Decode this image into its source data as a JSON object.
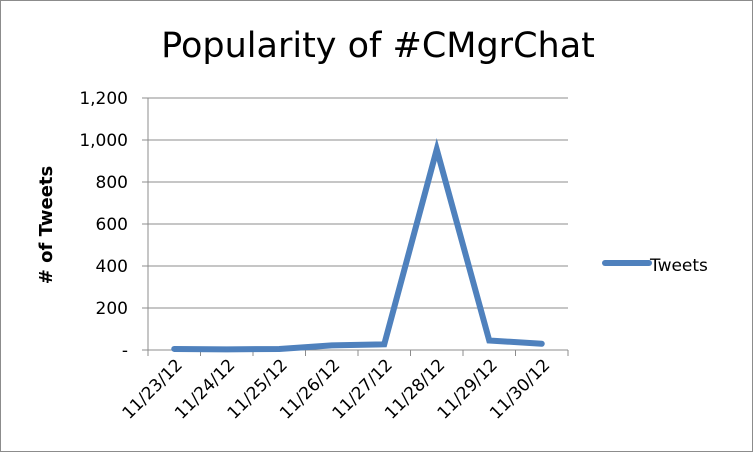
{
  "chart_data": {
    "type": "line",
    "title": "Popularity of #CMgrChat",
    "xlabel": "",
    "ylabel": "# of Tweets",
    "categories": [
      "11/23/12",
      "11/24/12",
      "11/25/12",
      "11/26/12",
      "11/27/12",
      "11/28/12",
      "11/29/12",
      "11/30/12"
    ],
    "series": [
      {
        "name": "Tweets",
        "values": [
          5,
          3,
          5,
          22,
          27,
          955,
          45,
          30
        ]
      }
    ],
    "ylim": [
      0,
      1200
    ],
    "yticks": [
      0,
      200,
      400,
      600,
      800,
      1000,
      1200
    ],
    "ytick_labels": [
      "-",
      "200",
      "400",
      "600",
      "800",
      "1,000",
      "1,200"
    ],
    "grid": true,
    "legend_position": "right",
    "series_color": "#4F81BD"
  }
}
